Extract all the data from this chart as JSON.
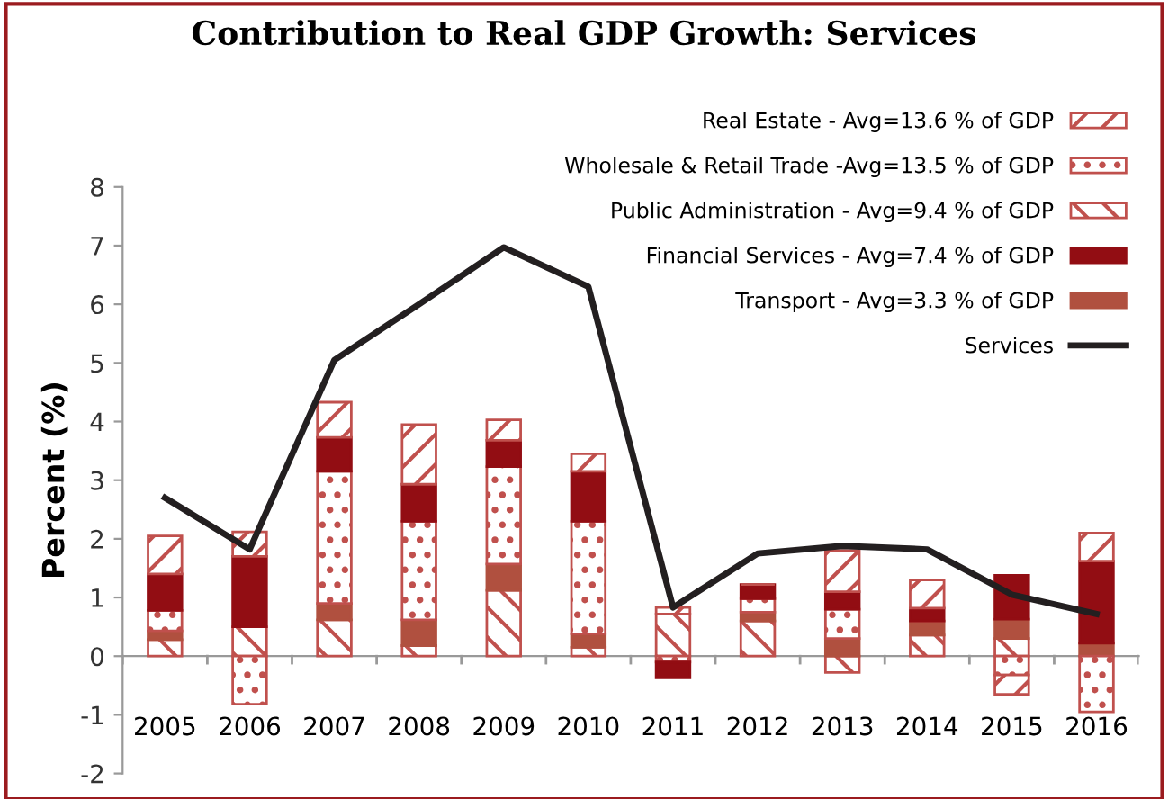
{
  "chart_data": {
    "type": "bar",
    "title": "Contribution to Real GDP Growth: Services",
    "ylabel": "Percent (%)",
    "stacked": true,
    "categories": [
      "2005",
      "2006",
      "2007",
      "2008",
      "2009",
      "2010",
      "2011",
      "2012",
      "2013",
      "2014",
      "2015",
      "2016"
    ],
    "series": [
      {
        "name": "Public Administration - Avg=9.4 % of GDP",
        "color": "#c0504d",
        "values": [
          0.28,
          0.5,
          0.62,
          0.18,
          1.12,
          0.15,
          0.72,
          0.6,
          -0.28,
          0.36,
          0.3,
          0
        ]
      },
      {
        "name": "Transport - Avg=3.3 % of GDP",
        "color": "#b0503f",
        "values": [
          0.15,
          0,
          0.28,
          0.44,
          0.45,
          0.23,
          0,
          0.15,
          0.3,
          0.24,
          0.33,
          0.22
        ]
      },
      {
        "name": "Wholesale & Retail Trade -Avg=13.5 % of GDP",
        "color": "#c0504d",
        "values": [
          0.35,
          -0.82,
          2.25,
          1.68,
          1.66,
          1.92,
          -0.1,
          0.23,
          0.5,
          0,
          -0.32,
          -0.95
        ]
      },
      {
        "name": "Financial Services - Avg=7.4 % of GDP",
        "color": "#920d13",
        "values": [
          0.62,
          1.2,
          0.58,
          0.63,
          0.45,
          0.85,
          -0.27,
          0.24,
          0.3,
          0.22,
          0.75,
          1.4
        ]
      },
      {
        "name": "Real Estate - Avg=13.6 % of GDP",
        "color": "#c0504d",
        "values": [
          0.65,
          0.42,
          0.6,
          1.02,
          0.35,
          0.3,
          0.11,
          0,
          0.7,
          0.48,
          -0.33,
          0.48
        ]
      },
      {
        "name": "Services",
        "type": "line",
        "color": "#231f20",
        "values": [
          2.7,
          1.82,
          5.05,
          6.0,
          6.97,
          6.3,
          0.83,
          1.75,
          1.88,
          1.82,
          1.05,
          0.72
        ]
      }
    ],
    "ylim": [
      -2,
      8
    ],
    "yticks": [
      -2,
      -1,
      0,
      1,
      2,
      3,
      4,
      5,
      6,
      7,
      8
    ],
    "grid": false,
    "legend": "top right",
    "marker": "none",
    "line_style": "solid"
  }
}
